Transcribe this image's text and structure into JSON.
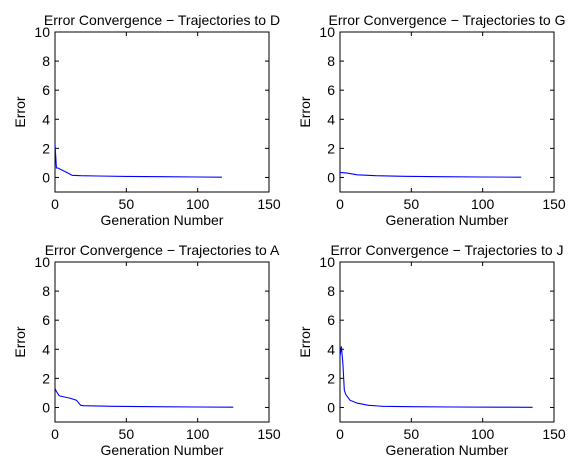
{
  "chart_data": [
    {
      "type": "line",
      "title": "Error Convergence − Trajectories to D",
      "xlabel": "Generation Number",
      "ylabel": "Error",
      "xlim": [
        0,
        150
      ],
      "ylim": [
        -1,
        10
      ],
      "xticks": [
        "0",
        "50",
        "100",
        "150"
      ],
      "yticks": [
        "0",
        "2",
        "4",
        "6",
        "8",
        "10"
      ],
      "grid": false,
      "line_color": "#0000ff",
      "series": [
        {
          "x": [
            0,
            1,
            2,
            10,
            12,
            18,
            30,
            50,
            75,
            100,
            117
          ],
          "y": [
            2.3,
            0.65,
            0.65,
            0.25,
            0.15,
            0.12,
            0.1,
            0.07,
            0.05,
            0.03,
            0.02
          ]
        }
      ]
    },
    {
      "type": "line",
      "title": "Error Convergence − Trajectories to G",
      "xlabel": "Generation Number",
      "ylabel": "Error",
      "xlim": [
        0,
        150
      ],
      "ylim": [
        -1,
        10
      ],
      "xticks": [
        "0",
        "50",
        "100",
        "150"
      ],
      "yticks": [
        "0",
        "2",
        "4",
        "6",
        "8",
        "10"
      ],
      "grid": false,
      "line_color": "#0000ff",
      "series": [
        {
          "x": [
            0,
            5,
            12,
            25,
            45,
            70,
            100,
            127
          ],
          "y": [
            0.35,
            0.3,
            0.18,
            0.12,
            0.08,
            0.05,
            0.03,
            0.02
          ]
        }
      ]
    },
    {
      "type": "line",
      "title": "Error Convergence − Trajectories to A",
      "xlabel": "Generation Number",
      "ylabel": "Error",
      "xlim": [
        0,
        150
      ],
      "ylim": [
        -1,
        10
      ],
      "xticks": [
        "0",
        "50",
        "100",
        "150"
      ],
      "yticks": [
        "0",
        "2",
        "4",
        "6",
        "8",
        "10"
      ],
      "grid": false,
      "line_color": "#0000ff",
      "series": [
        {
          "x": [
            0,
            1,
            3,
            5,
            10,
            15,
            18,
            20,
            40,
            70,
            100,
            125
          ],
          "y": [
            1.3,
            1.1,
            0.8,
            0.75,
            0.65,
            0.5,
            0.15,
            0.12,
            0.08,
            0.05,
            0.03,
            0.02
          ]
        }
      ]
    },
    {
      "type": "line",
      "title": "Error Convergence − Trajectories to J",
      "xlabel": "Generation Number",
      "ylabel": "Error",
      "xlim": [
        0,
        150
      ],
      "ylim": [
        -1,
        10
      ],
      "xticks": [
        "0",
        "50",
        "100",
        "150"
      ],
      "yticks": [
        "0",
        "2",
        "4",
        "6",
        "8",
        "10"
      ],
      "grid": false,
      "line_color": "#0000ff",
      "series": [
        {
          "x": [
            0,
            1,
            2,
            3,
            4,
            7,
            12,
            20,
            30,
            50,
            80,
            110,
            135
          ],
          "y": [
            3.5,
            4.2,
            3.0,
            1.2,
            0.9,
            0.5,
            0.3,
            0.15,
            0.08,
            0.05,
            0.03,
            0.02,
            0.01
          ]
        }
      ]
    }
  ]
}
